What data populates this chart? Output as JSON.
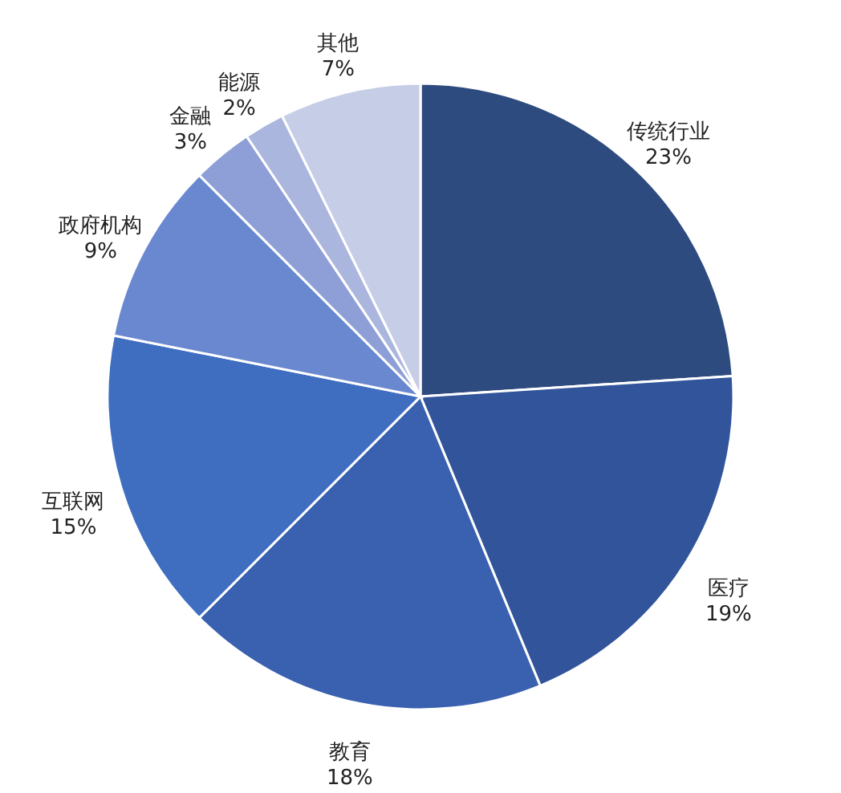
{
  "chart_data": {
    "type": "pie",
    "categories": [
      "传统行业",
      "医疗",
      "教育",
      "互联网",
      "政府机构",
      "金融",
      "能源",
      "其他"
    ],
    "values": [
      23,
      19,
      18,
      15,
      9,
      3,
      2,
      7
    ],
    "colors": [
      "#2e4b7f",
      "#31549b",
      "#3961b0",
      "#3f6ec1",
      "#6a88cf",
      "#8d9fd6",
      "#abb6df",
      "#c6cde7"
    ],
    "value_labels": [
      "23%",
      "19%",
      "18%",
      "15%",
      "9%",
      "3%",
      "2%",
      "7%"
    ]
  }
}
